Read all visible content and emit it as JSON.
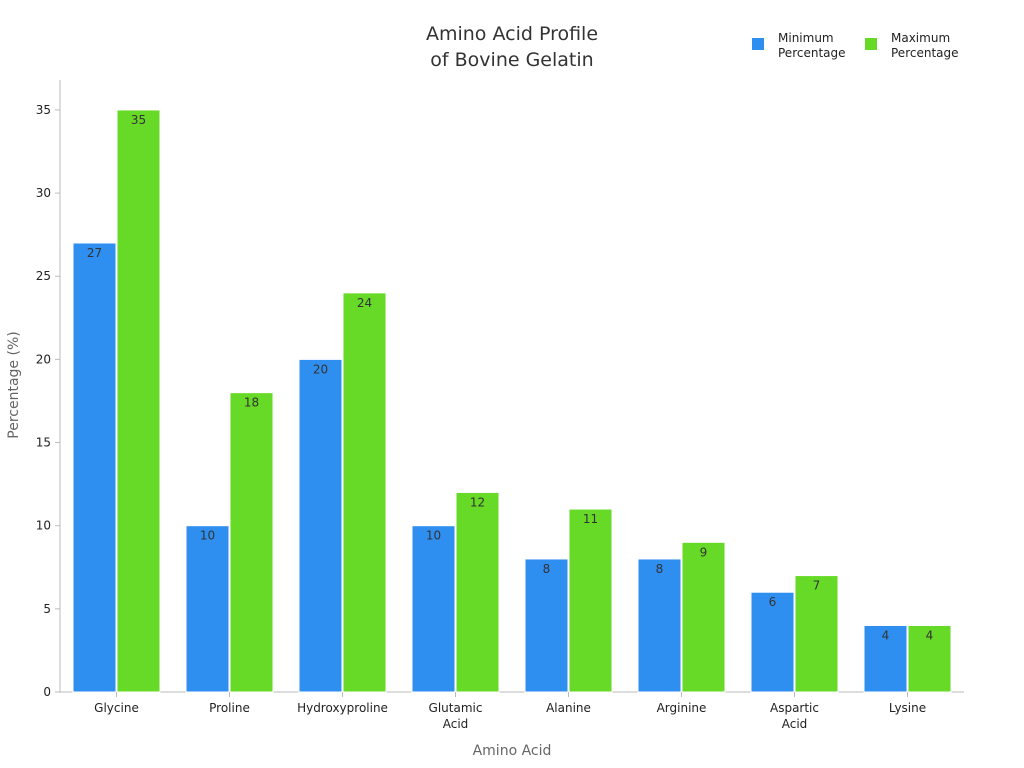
{
  "chart_data": {
    "type": "bar",
    "title_lines": [
      "Amino Acid Profile",
      "of Bovine Gelatin"
    ],
    "xlabel": "Amino Acid",
    "ylabel": "Percentage (%)",
    "categories": [
      [
        "Glycine"
      ],
      [
        "Proline"
      ],
      [
        "Hydroxyproline"
      ],
      [
        "Glutamic",
        "Acid"
      ],
      [
        "Alanine"
      ],
      [
        "Arginine"
      ],
      [
        "Aspartic",
        "Acid"
      ],
      [
        "Lysine"
      ]
    ],
    "series": [
      {
        "name_lines": [
          "Minimum",
          "Percentage"
        ],
        "color": "#2f8ff0",
        "values": [
          27,
          10,
          20,
          10,
          8,
          8,
          6,
          4
        ]
      },
      {
        "name_lines": [
          "Maximum",
          "Percentage"
        ],
        "color": "#66da26",
        "values": [
          35,
          18,
          24,
          12,
          11,
          9,
          7,
          4
        ]
      }
    ],
    "ylim": [
      0,
      36.8
    ],
    "yticks": [
      0,
      5,
      10,
      15,
      20,
      25,
      30,
      35
    ],
    "grid": false,
    "legend_position": "top-right"
  }
}
